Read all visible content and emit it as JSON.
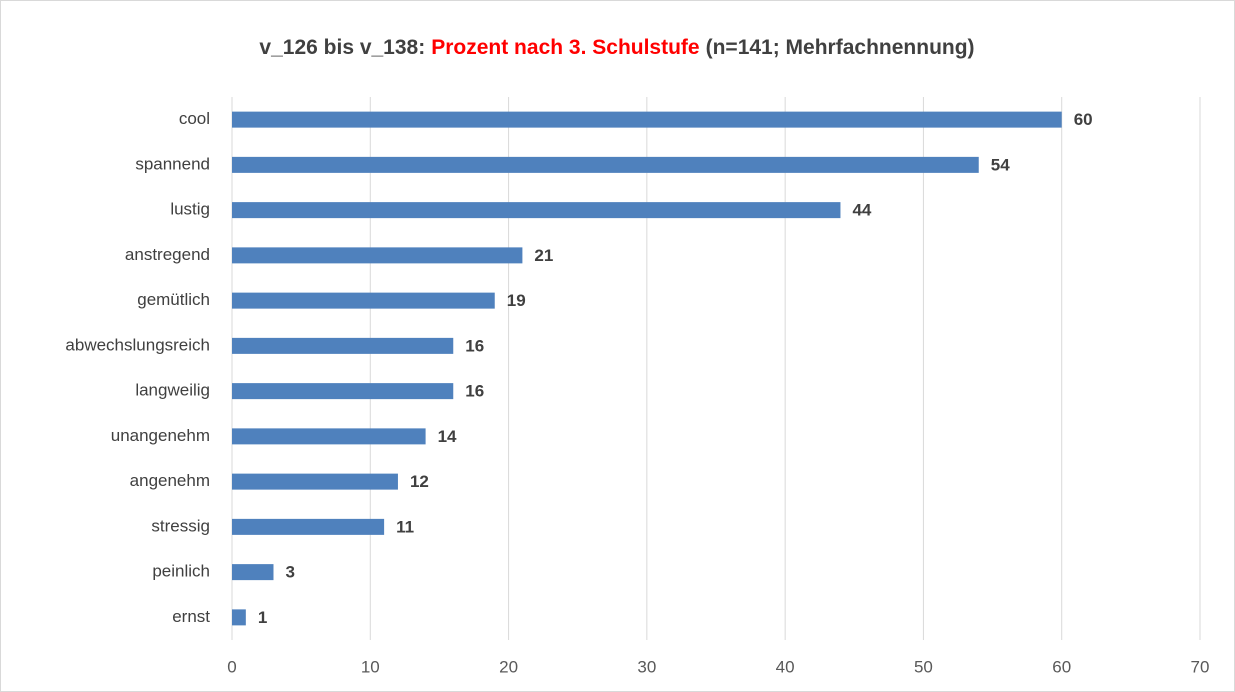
{
  "chart_data": {
    "type": "bar",
    "orientation": "horizontal",
    "title": [
      {
        "text": "v_126 bis v_138:",
        "color": "#404040"
      },
      {
        "text": "Prozent nach 3. Schulstufe",
        "color": "#ff0000"
      },
      {
        "text": "(n=141; Mehrfachnennung)",
        "color": "#404040"
      }
    ],
    "categories": [
      "cool",
      "spannend",
      "lustig",
      "anstregend",
      "gemütlich",
      "abwechslungsreich",
      "langweilig",
      "unangenehm",
      "angenehm",
      "stressig",
      "peinlich",
      "ernst"
    ],
    "values": [
      60,
      54,
      44,
      21,
      19,
      16,
      16,
      14,
      12,
      11,
      3,
      1
    ],
    "color": "#4f81bd",
    "xlim": [
      0,
      70
    ],
    "xticks": [
      0,
      10,
      20,
      30,
      40,
      50,
      60,
      70
    ],
    "grid": true
  }
}
